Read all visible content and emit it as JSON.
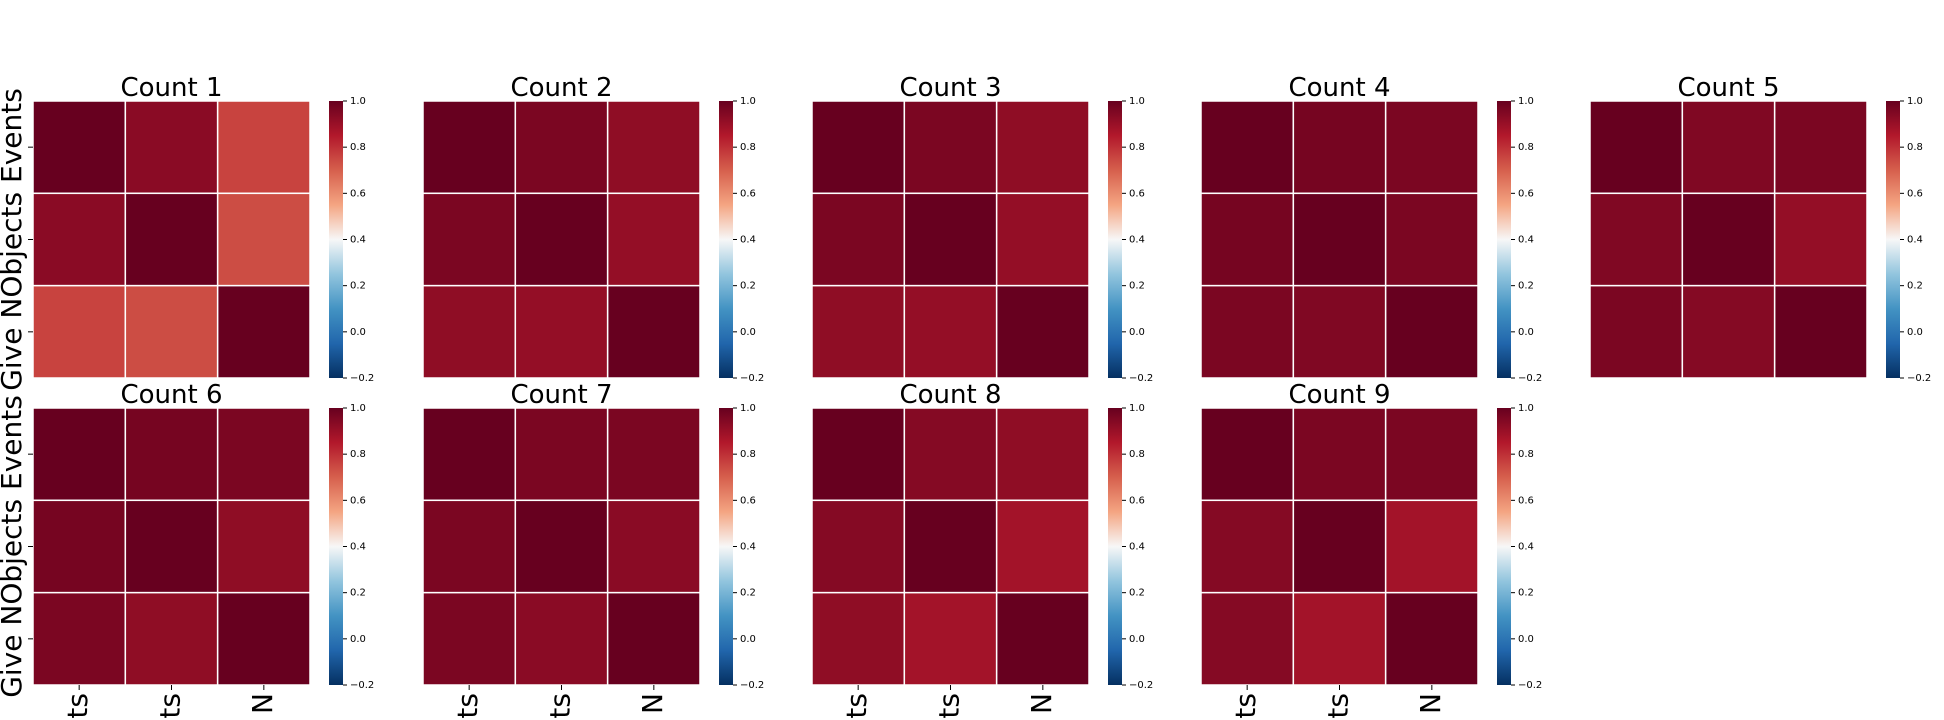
{
  "chart_data": {
    "type": "heatmap",
    "colormap": "RdBu_r",
    "vmin": -0.2,
    "vmax": 1.0,
    "colorbar_ticks": [
      "1.0",
      "0.8",
      "0.6",
      "0.4",
      "0.2",
      "0.0",
      "−0.2"
    ],
    "colorbar_tick_values": [
      1.0,
      0.8,
      0.6,
      0.4,
      0.2,
      0.0,
      -0.2
    ],
    "ylabel": "Give NObjects Events",
    "xtick_labels": [
      "ts",
      "ts",
      "N"
    ],
    "grid": false,
    "panels": [
      {
        "title": "Count 1",
        "values": [
          [
            1.0,
            0.93,
            0.76
          ],
          [
            0.93,
            1.0,
            0.74
          ],
          [
            0.76,
            0.74,
            1.0
          ]
        ]
      },
      {
        "title": "Count 2",
        "values": [
          [
            1.0,
            0.96,
            0.92
          ],
          [
            0.96,
            1.0,
            0.91
          ],
          [
            0.92,
            0.91,
            1.0
          ]
        ]
      },
      {
        "title": "Count 3",
        "values": [
          [
            1.0,
            0.96,
            0.92
          ],
          [
            0.96,
            1.0,
            0.91
          ],
          [
            0.92,
            0.91,
            1.0
          ]
        ]
      },
      {
        "title": "Count 4",
        "values": [
          [
            1.0,
            0.97,
            0.96
          ],
          [
            0.97,
            1.0,
            0.96
          ],
          [
            0.96,
            0.95,
            1.0
          ]
        ]
      },
      {
        "title": "Count 5",
        "values": [
          [
            1.0,
            0.95,
            0.96
          ],
          [
            0.95,
            1.0,
            0.91
          ],
          [
            0.96,
            0.94,
            1.0
          ]
        ]
      },
      {
        "title": "Count 6",
        "values": [
          [
            1.0,
            0.97,
            0.96
          ],
          [
            0.97,
            1.0,
            0.92
          ],
          [
            0.96,
            0.92,
            1.0
          ]
        ]
      },
      {
        "title": "Count 7",
        "values": [
          [
            1.0,
            0.96,
            0.96
          ],
          [
            0.96,
            1.0,
            0.93
          ],
          [
            0.96,
            0.93,
            1.0
          ]
        ]
      },
      {
        "title": "Count 8",
        "values": [
          [
            1.0,
            0.94,
            0.92
          ],
          [
            0.94,
            1.0,
            0.88
          ],
          [
            0.92,
            0.88,
            1.0
          ]
        ]
      },
      {
        "title": "Count 9",
        "values": [
          [
            1.0,
            0.96,
            0.96
          ],
          [
            0.94,
            1.0,
            0.88
          ],
          [
            0.94,
            0.88,
            1.0
          ]
        ]
      }
    ]
  }
}
